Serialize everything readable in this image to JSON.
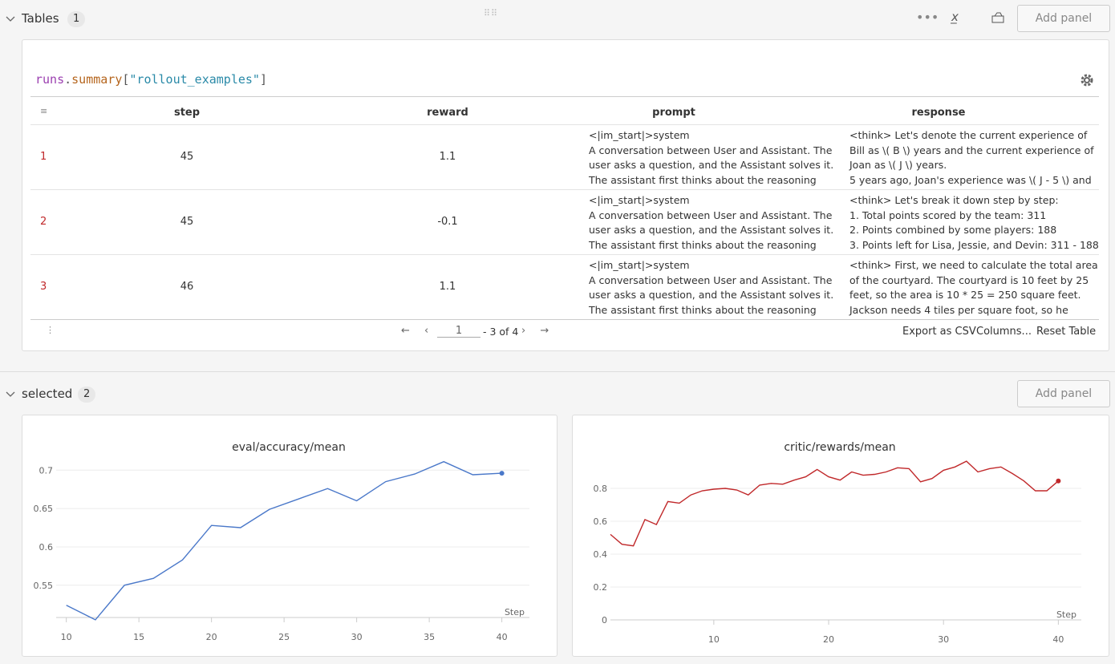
{
  "sections": [
    {
      "title": "Tables",
      "count": 1,
      "button": "Add panel"
    },
    {
      "title": "selected",
      "count": 2,
      "button": "Add panel"
    }
  ],
  "query": {
    "parts": [
      "runs",
      ".",
      "summary",
      "[",
      "\"rollout_examples\"",
      "]"
    ]
  },
  "table": {
    "columns": [
      "step",
      "reward",
      "prompt",
      "response"
    ],
    "rows": [
      {
        "index": 1,
        "step": 45,
        "reward": 1.1,
        "prompt": [
          "<|im_start|>system",
          "A conversation between User and Assistant. The",
          "user asks a question, and the Assistant solves it.",
          "The assistant first thinks about the reasoning"
        ],
        "response": [
          "<think> Let's denote the current experience of",
          "Bill as \\( B \\) years and the current experience of",
          "Joan as \\( J \\) years.",
          "5 years ago, Joan's experience was \\( J - 5 \\) and"
        ]
      },
      {
        "index": 2,
        "step": 45,
        "reward": -0.1,
        "prompt": [
          "<|im_start|>system",
          "A conversation between User and Assistant. The",
          "user asks a question, and the Assistant solves it.",
          "The assistant first thinks about the reasoning"
        ],
        "response": [
          "<think> Let's break it down step by step:",
          "1. Total points scored by the team: 311",
          "2. Points combined by some players: 188",
          "3. Points left for Lisa, Jessie, and Devin: 311 - 188"
        ]
      },
      {
        "index": 3,
        "step": 46,
        "reward": 1.1,
        "prompt": [
          "<|im_start|>system",
          "A conversation between User and Assistant. The",
          "user asks a question, and the Assistant solves it.",
          "The assistant first thinks about the reasoning"
        ],
        "response": [
          "<think> First, we need to calculate the total area",
          "of the courtyard. The courtyard is 10 feet by 25",
          "feet, so the area is 10 * 25 = 250 square feet.",
          "Jackson needs 4 tiles per square foot, so he"
        ]
      }
    ]
  },
  "pagination": {
    "page": "1",
    "range": "- 3 of 4"
  },
  "actions": [
    "Export as CSV",
    "Columns...",
    "Reset Table"
  ],
  "chart_data": [
    {
      "type": "line",
      "title": "eval/accuracy/mean",
      "x_label": "Step",
      "color": "#4a78c9",
      "grid": true,
      "x": [
        10,
        12,
        14,
        16,
        18,
        20,
        22,
        24,
        26,
        28,
        30,
        32,
        34,
        36,
        38,
        40
      ],
      "values": [
        0.524,
        0.505,
        0.55,
        0.559,
        0.583,
        0.628,
        0.625,
        0.649,
        0.6625,
        0.676,
        0.66,
        0.685,
        0.695,
        0.711,
        0.694,
        0.696
      ],
      "xlim": [
        9.3,
        41.9
      ],
      "ylim": [
        0.508,
        0.717
      ],
      "xticks": [
        10,
        15,
        20,
        25,
        30,
        35,
        40
      ],
      "yticks": [
        0.55,
        0.6,
        0.65,
        0.7
      ]
    },
    {
      "type": "line",
      "title": "critic/rewards/mean",
      "x_label": "Step",
      "color": "#c0282a",
      "grid": true,
      "x": [
        1,
        2,
        3,
        4,
        5,
        6,
        7,
        8,
        9,
        10,
        11,
        12,
        13,
        14,
        15,
        16,
        17,
        18,
        19,
        20,
        21,
        22,
        23,
        24,
        25,
        26,
        27,
        28,
        29,
        30,
        31,
        32,
        33,
        34,
        35,
        36,
        37,
        38,
        39,
        40
      ],
      "values": [
        0.52,
        0.46,
        0.45,
        0.61,
        0.58,
        0.72,
        0.71,
        0.76,
        0.785,
        0.795,
        0.8,
        0.79,
        0.76,
        0.82,
        0.83,
        0.825,
        0.85,
        0.87,
        0.915,
        0.87,
        0.85,
        0.9,
        0.88,
        0.885,
        0.9,
        0.925,
        0.92,
        0.84,
        0.86,
        0.91,
        0.93,
        0.965,
        0.9,
        0.92,
        0.93,
        0.89,
        0.845,
        0.785,
        0.785,
        0.845
      ],
      "xlim": [
        1,
        42
      ],
      "ylim": [
        0,
        0.99
      ],
      "xticks": [
        10,
        20,
        30,
        40
      ],
      "yticks": [
        0,
        0.2,
        0.4,
        0.6,
        0.8
      ]
    }
  ]
}
